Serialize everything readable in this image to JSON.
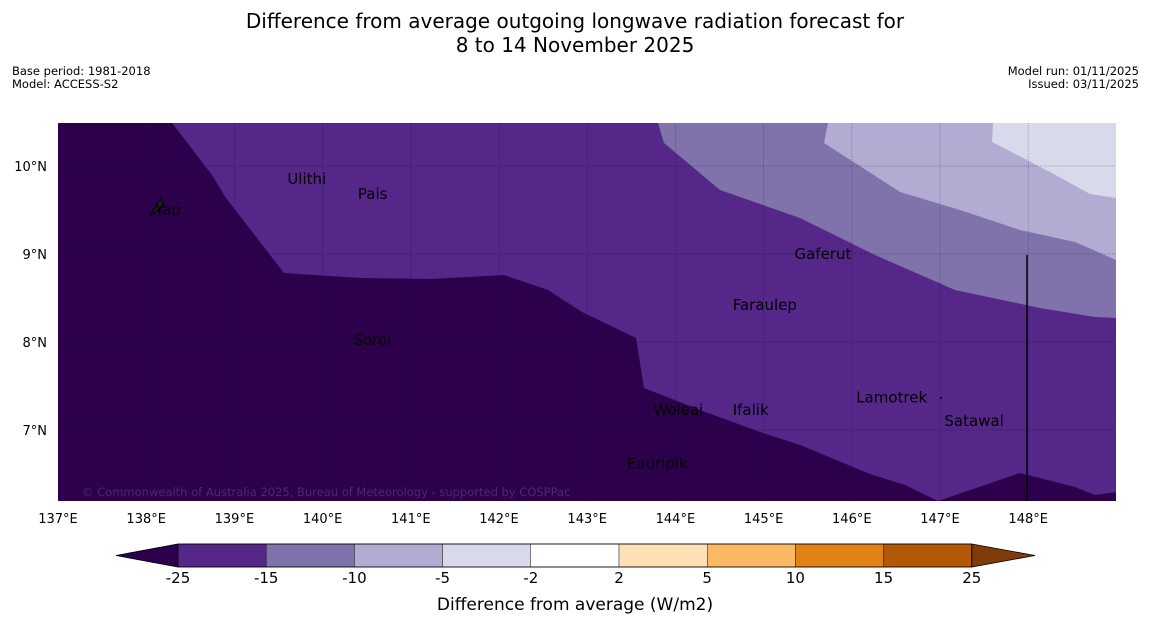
{
  "title": {
    "line1": "Difference from average outgoing longwave radiation forecast for",
    "line2": "8 to 14 November 2025"
  },
  "meta_left": {
    "base_period": "Base period: 1981-2018",
    "model": "Model: ACCESS-S2"
  },
  "meta_right": {
    "model_run": "Model run: 01/11/2025",
    "issued": "Issued: 03/11/2025"
  },
  "map": {
    "lon_range": [
      137.0,
      149.0
    ],
    "lat_range": [
      6.2,
      10.5
    ],
    "x_ticks": [
      {
        "value": 137,
        "label": "137°E"
      },
      {
        "value": 138,
        "label": "138°E"
      },
      {
        "value": 139,
        "label": "139°E"
      },
      {
        "value": 140,
        "label": "140°E"
      },
      {
        "value": 141,
        "label": "141°E"
      },
      {
        "value": 142,
        "label": "142°E"
      },
      {
        "value": 143,
        "label": "143°E"
      },
      {
        "value": 144,
        "label": "144°E"
      },
      {
        "value": 145,
        "label": "145°E"
      },
      {
        "value": 146,
        "label": "146°E"
      },
      {
        "value": 147,
        "label": "147°E"
      },
      {
        "value": 148,
        "label": "148°E"
      }
    ],
    "y_ticks": [
      {
        "value": 10,
        "label": "10°N"
      },
      {
        "value": 9,
        "label": "9°N"
      },
      {
        "value": 8,
        "label": "8°N"
      },
      {
        "value": 7,
        "label": "7°N"
      }
    ],
    "places": [
      {
        "name": "Ulithi",
        "lon": 139.6,
        "lat": 9.85
      },
      {
        "name": "Pais",
        "lon": 140.4,
        "lat": 9.68
      },
      {
        "name": "Yap",
        "lon": 138.1,
        "lat": 9.5
      },
      {
        "name": "Gaferut",
        "lon": 145.35,
        "lat": 9.0
      },
      {
        "name": "Faraulep",
        "lon": 144.65,
        "lat": 8.42
      },
      {
        "name": "Sorol",
        "lon": 140.35,
        "lat": 8.02
      },
      {
        "name": "Lamotrek",
        "lon": 146.05,
        "lat": 7.37
      },
      {
        "name": "Woleai",
        "lon": 143.75,
        "lat": 7.23
      },
      {
        "name": "Ifalik",
        "lon": 144.65,
        "lat": 7.23
      },
      {
        "name": "Satawal",
        "lon": 147.05,
        "lat": 7.1
      },
      {
        "name": "Eauripik",
        "lon": 143.45,
        "lat": 6.62
      }
    ],
    "copyright": "© Commonwealth of Australia 2025, Bureau of Meteorology - supported by COSPPac"
  },
  "colorbar": {
    "label": "Difference from average (W/m2)",
    "ticks": [
      "-25",
      "-15",
      "-10",
      "-5",
      "-2",
      "2",
      "5",
      "10",
      "15",
      "25"
    ],
    "colors": [
      "#2d004b",
      "#542788",
      "#8073ac",
      "#b2abd2",
      "#d8daeb",
      "#ffffff",
      "#fee0b6",
      "#fdb863",
      "#e08214",
      "#b35806",
      "#7f3b08"
    ]
  }
}
